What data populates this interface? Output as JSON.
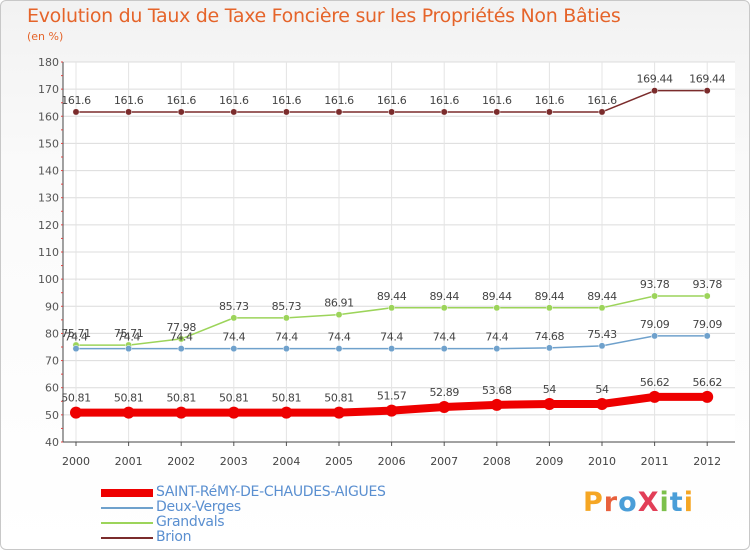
{
  "title": "Evolution du Taux de Taxe Foncière sur les Propriétés Non Bâties",
  "unit_label": "(en %)",
  "logo": {
    "text": "ProXiti",
    "letters": [
      "P",
      "r",
      "o",
      "X",
      "i",
      "t",
      "i"
    ],
    "colors": [
      "#f5a623",
      "#e8603c",
      "#4a9ed8",
      "#e23e57",
      "#7cc04b",
      "#4a9ed8",
      "#f5a623"
    ]
  },
  "chart_data": {
    "type": "line",
    "x": [
      "2000",
      "2001",
      "2002",
      "2003",
      "2004",
      "2005",
      "2006",
      "2007",
      "2008",
      "2009",
      "2010",
      "2011",
      "2012"
    ],
    "y_ticks": [
      "40",
      "50",
      "60",
      "70",
      "80",
      "90",
      "100",
      "110",
      "120",
      "130",
      "140",
      "150",
      "160",
      "170",
      "180"
    ],
    "ylim": [
      40,
      180
    ],
    "xlabel": "",
    "ylabel": "(en %)",
    "grid": true,
    "series": [
      {
        "name": "Brion",
        "color": "#7b2c2c",
        "highlight": false,
        "values": [
          161.6,
          161.6,
          161.6,
          161.6,
          161.6,
          161.6,
          161.6,
          161.6,
          161.6,
          161.6,
          161.6,
          169.44,
          169.44
        ],
        "labels": [
          "161.6",
          "161.6",
          "161.6",
          "161.6",
          "161.6",
          "161.6",
          "161.6",
          "161.6",
          "161.6",
          "161.6",
          "161.6",
          "169.44",
          "169.44"
        ]
      },
      {
        "name": "Grandvals",
        "color": "#9cd45a",
        "highlight": false,
        "values": [
          75.71,
          75.71,
          77.98,
          85.73,
          85.73,
          86.91,
          89.44,
          89.44,
          89.44,
          89.44,
          89.44,
          93.78,
          93.78
        ],
        "labels": [
          "75.71",
          "75.71",
          "77.98",
          "85.73",
          "85.73",
          "86.91",
          "89.44",
          "89.44",
          "89.44",
          "89.44",
          "89.44",
          "93.78",
          "93.78"
        ]
      },
      {
        "name": "Deux-Verges",
        "color": "#6fa1cc",
        "highlight": false,
        "values": [
          74.4,
          74.4,
          74.4,
          74.4,
          74.4,
          74.4,
          74.4,
          74.4,
          74.4,
          74.68,
          75.43,
          79.09,
          79.09
        ],
        "labels": [
          "74.4",
          "74.4",
          "74.4",
          "74.4",
          "74.4",
          "74.4",
          "74.4",
          "74.4",
          "74.4",
          "74.68",
          "75.43",
          "79.09",
          "79.09"
        ]
      },
      {
        "name": "SAINT-RéMY-DE-CHAUDES-AIGUES",
        "color": "#ee0000",
        "highlight": true,
        "values": [
          50.81,
          50.81,
          50.81,
          50.81,
          50.81,
          50.81,
          51.57,
          52.89,
          53.68,
          54,
          54,
          56.62,
          56.62
        ],
        "labels": [
          "50.81",
          "50.81",
          "50.81",
          "50.81",
          "50.81",
          "50.81",
          "51.57",
          "52.89",
          "53.68",
          "54",
          "54",
          "56.62",
          "56.62"
        ]
      }
    ],
    "legend_order": [
      3,
      2,
      1,
      0
    ],
    "legend_position": "bottom-left"
  }
}
